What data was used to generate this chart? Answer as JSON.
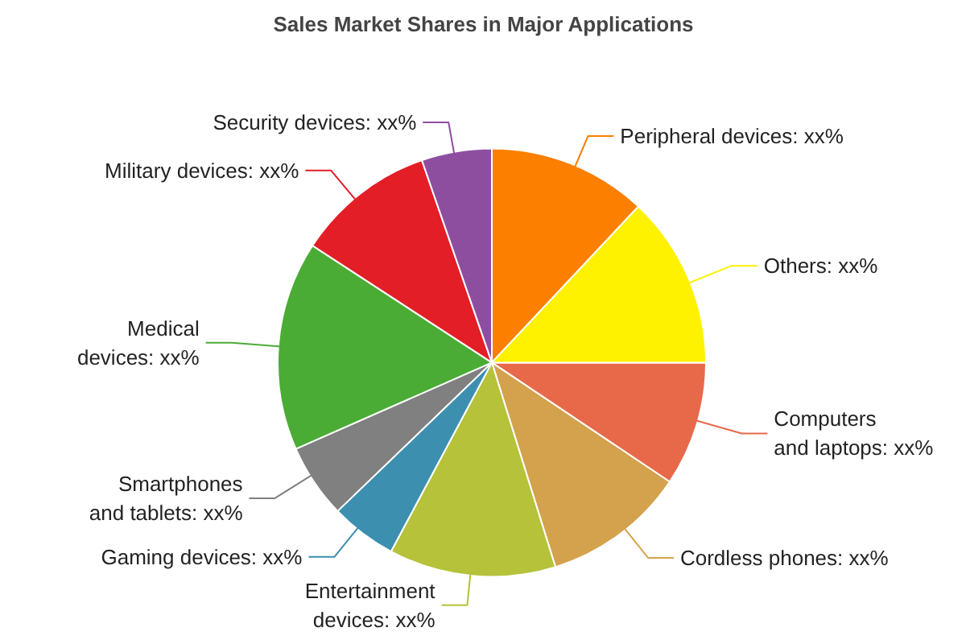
{
  "chart_data": {
    "type": "pie",
    "title": "Sales Market Shares in Major Applications",
    "categories": [
      "Computers and laptops",
      "Cordless phones",
      "Entertainment devices",
      "Gaming devices",
      "Smartphones and tablets",
      "Medical devices",
      "Military devices",
      "Security devices",
      "Peripheral devices",
      "Others"
    ],
    "values": [
      9.4,
      10.8,
      12.6,
      5.0,
      5.6,
      15.8,
      10.5,
      5.3,
      12.0,
      13.0
    ],
    "colors": [
      "#e8694a",
      "#d4a24c",
      "#b5c23a",
      "#3d8fb0",
      "#808080",
      "#4aac35",
      "#e41e26",
      "#8e4ea0",
      "#fc7f00",
      "#fef200"
    ],
    "value_labels": [
      "xx%",
      "xx%",
      "xx%",
      "xx%",
      "xx%",
      "xx%",
      "xx%",
      "xx%",
      "xx%",
      "xx%"
    ]
  }
}
